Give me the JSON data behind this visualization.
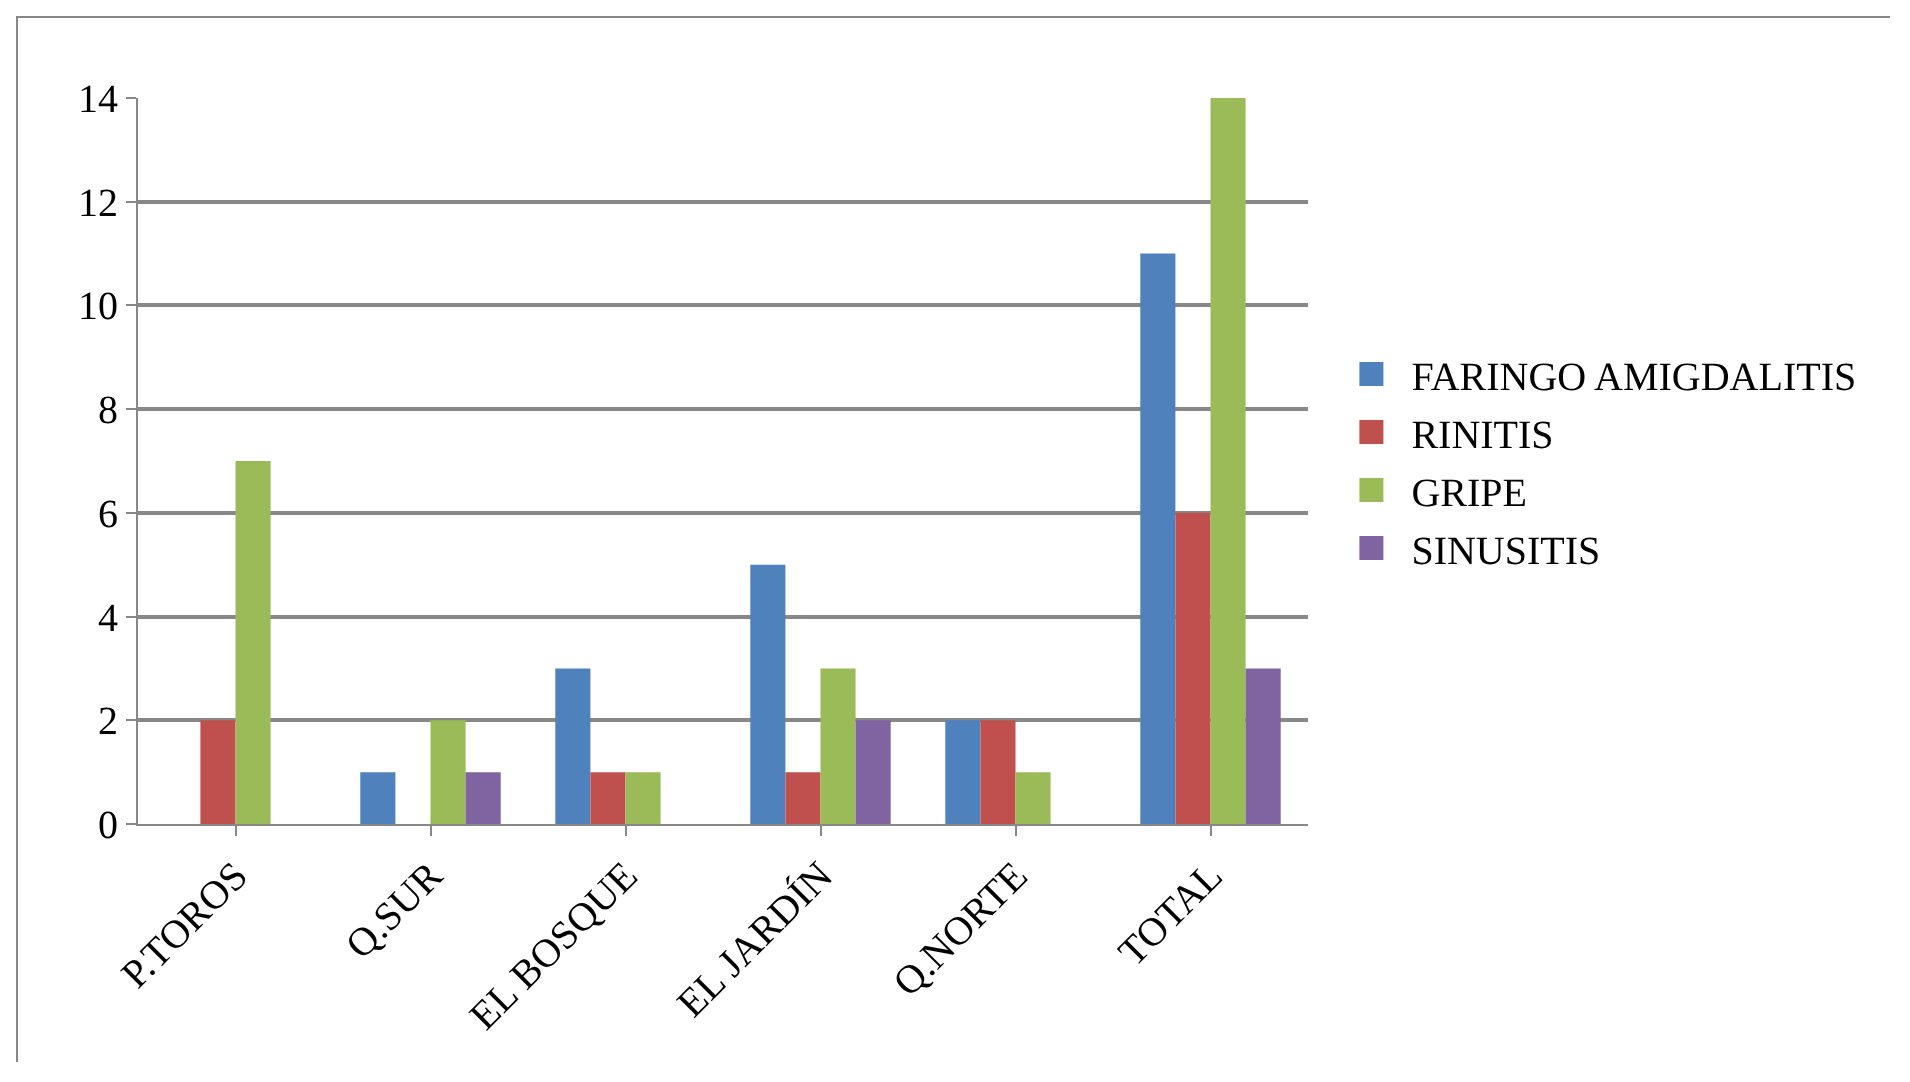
{
  "chart_data": {
    "type": "bar",
    "categories": [
      "P.TOROS",
      "Q.SUR",
      "EL BOSQUE",
      "EL JARDÍN",
      "Q.NORTE",
      "TOTAL"
    ],
    "series": [
      {
        "name": "FARINGO AMIGDALITIS",
        "color": "#4f81bd",
        "values": [
          0,
          1,
          3,
          5,
          2,
          11
        ]
      },
      {
        "name": "RINITIS",
        "color": "#c0504d",
        "values": [
          2,
          0,
          1,
          1,
          2,
          6
        ]
      },
      {
        "name": "GRIPE",
        "color": "#9bbb59",
        "values": [
          7,
          2,
          1,
          3,
          1,
          14
        ]
      },
      {
        "name": "SINUSITIS",
        "color": "#8064a2",
        "values": [
          0,
          1,
          0,
          2,
          0,
          3
        ]
      }
    ],
    "ylim": [
      0,
      14
    ],
    "yticks": [
      0,
      2,
      4,
      6,
      8,
      10,
      12,
      14
    ],
    "grid": "y",
    "legend": "right"
  }
}
